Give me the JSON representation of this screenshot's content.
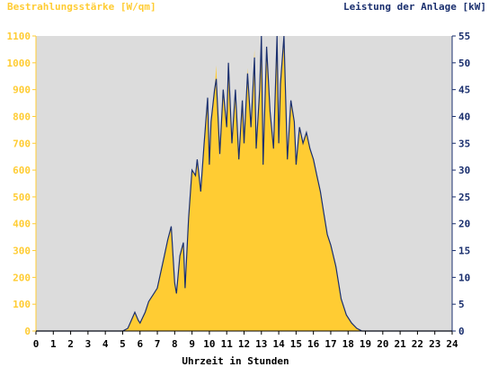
{
  "chart_data": {
    "type": "area",
    "left_axis_title": "Bestrahlungsstärke [W/qm]",
    "right_axis_title": "Leistung der Anlage [kW]",
    "xlabel": "Uhrzeit in Stunden",
    "xlim": [
      0,
      24
    ],
    "ylim_left": [
      0,
      1100
    ],
    "ylim_right": [
      0,
      55
    ],
    "x_ticks": [
      "0",
      "1",
      "2",
      "3",
      "4",
      "5",
      "6",
      "7",
      "8",
      "9",
      "10",
      "11",
      "12",
      "13",
      "14",
      "15",
      "16",
      "17",
      "18",
      "19",
      "20",
      "21",
      "22",
      "23",
      "24"
    ],
    "y_left_ticks": [
      "0",
      "100",
      "200",
      "300",
      "400",
      "500",
      "600",
      "700",
      "800",
      "900",
      "1000",
      "1100"
    ],
    "y_right_ticks": [
      "0",
      "5",
      "10",
      "15",
      "20",
      "25",
      "30",
      "35",
      "40",
      "45",
      "50",
      "55"
    ],
    "grid": false,
    "colors": {
      "plot_background": "#dcdcdc",
      "irradiance_fill": "#ffcc33",
      "power_line": "#1a2f6e",
      "left_axis_text": "#ffcc33",
      "right_axis_text": "#1a2f6e"
    },
    "series": [
      {
        "name": "Bestrahlungsstärke [W/qm]",
        "axis": "left",
        "type": "area",
        "x": [
          0,
          5,
          5.3,
          5.5,
          5.7,
          5.9,
          6.0,
          6.3,
          6.5,
          6.8,
          7.0,
          7.2,
          7.4,
          7.6,
          7.8,
          8.0,
          8.1,
          8.3,
          8.5,
          8.6,
          8.8,
          9.0,
          9.2,
          9.3,
          9.5,
          9.7,
          9.9,
          10.0,
          10.1,
          10.3,
          10.4,
          10.6,
          10.8,
          11.0,
          11.1,
          11.3,
          11.5,
          11.7,
          11.9,
          12.0,
          12.2,
          12.4,
          12.6,
          12.7,
          12.9,
          13.0,
          13.1,
          13.3,
          13.5,
          13.7,
          13.9,
          14.0,
          14.1,
          14.3,
          14.5,
          14.7,
          14.9,
          15.0,
          15.2,
          15.4,
          15.6,
          15.8,
          16.0,
          16.2,
          16.4,
          16.6,
          16.8,
          17.0,
          17.3,
          17.6,
          17.9,
          18.2,
          18.5,
          18.8,
          19.0,
          19.2,
          19.5,
          19.8,
          20.0,
          20.2,
          20.5,
          24
        ],
        "values": [
          0,
          0,
          10,
          40,
          70,
          40,
          30,
          70,
          110,
          140,
          160,
          220,
          280,
          340,
          390,
          180,
          140,
          280,
          330,
          160,
          420,
          600,
          580,
          640,
          520,
          700,
          870,
          620,
          780,
          900,
          990,
          640,
          900,
          760,
          1000,
          700,
          900,
          640,
          860,
          700,
          980,
          760,
          1050,
          680,
          900,
          1100,
          620,
          1060,
          820,
          680,
          1100,
          700,
          920,
          1100,
          640,
          860,
          780,
          620,
          760,
          700,
          740,
          680,
          640,
          580,
          520,
          440,
          360,
          320,
          240,
          120,
          60,
          30,
          10,
          0,
          0,
          0,
          0,
          0,
          0,
          0,
          0,
          0
        ]
      },
      {
        "name": "Leistung der Anlage [kW]",
        "axis": "right",
        "type": "line",
        "x": [
          0,
          5,
          5.3,
          5.5,
          5.7,
          5.9,
          6.0,
          6.3,
          6.5,
          6.8,
          7.0,
          7.2,
          7.4,
          7.6,
          7.8,
          8.0,
          8.1,
          8.3,
          8.5,
          8.6,
          8.8,
          9.0,
          9.2,
          9.3,
          9.5,
          9.7,
          9.9,
          10.0,
          10.1,
          10.3,
          10.4,
          10.6,
          10.8,
          11.0,
          11.1,
          11.3,
          11.5,
          11.7,
          11.9,
          12.0,
          12.2,
          12.4,
          12.6,
          12.7,
          12.9,
          13.0,
          13.1,
          13.3,
          13.5,
          13.7,
          13.9,
          14.0,
          14.1,
          14.3,
          14.5,
          14.7,
          14.9,
          15.0,
          15.2,
          15.4,
          15.6,
          15.8,
          16.0,
          16.2,
          16.4,
          16.6,
          16.8,
          17.0,
          17.3,
          17.6,
          17.9,
          18.2,
          18.5,
          18.8,
          19.0,
          19.2,
          19.5,
          19.8,
          20.0,
          20.2,
          20.5,
          24
        ],
        "values": [
          0,
          0,
          0.5,
          2,
          3.5,
          2,
          1.5,
          3.5,
          5.5,
          7,
          8,
          11,
          14,
          17,
          19.5,
          9,
          7,
          14,
          16.5,
          8,
          21,
          30,
          29,
          32,
          26,
          35,
          43.5,
          31,
          39,
          45,
          47,
          33,
          45,
          38,
          50,
          35,
          45,
          32,
          43,
          35,
          48,
          38,
          51,
          34,
          45,
          55,
          31,
          53,
          41,
          34,
          55,
          35,
          46,
          55,
          32,
          43,
          39,
          31,
          38,
          35,
          37,
          34,
          32,
          29,
          26,
          22,
          18,
          16,
          12,
          6,
          3,
          1.5,
          0.5,
          0,
          0,
          0,
          0,
          0,
          0,
          0,
          0,
          0
        ]
      }
    ]
  }
}
